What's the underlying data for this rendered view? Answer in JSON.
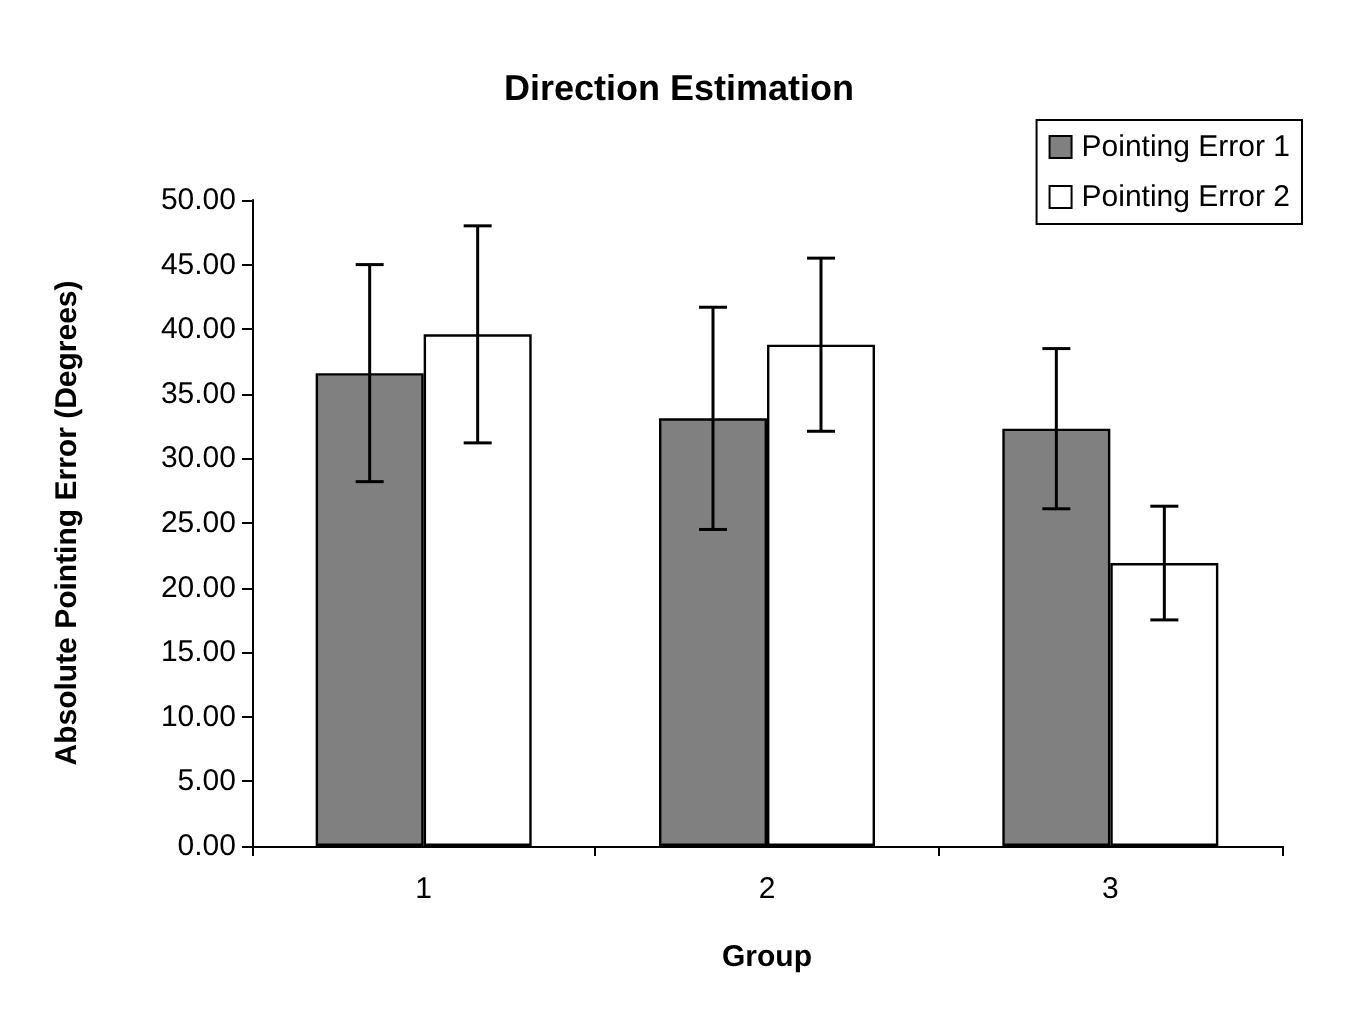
{
  "chart_data": {
    "type": "bar",
    "title": "Direction Estimation",
    "xlabel": "Group",
    "ylabel": "Absolute Pointing Error (Degrees)",
    "categories": [
      "1",
      "2",
      "3"
    ],
    "series": [
      {
        "name": "Pointing Error 1",
        "color": "#808080",
        "values": [
          36.6,
          33.1,
          32.3
        ],
        "errors": [
          8.4,
          8.6,
          6.2
        ]
      },
      {
        "name": "Pointing Error 2",
        "color": "#ffffff",
        "values": [
          39.6,
          38.8,
          21.9
        ],
        "errors": [
          8.4,
          6.7,
          4.4
        ]
      }
    ],
    "ylim": [
      0,
      50
    ],
    "yticks": [
      {
        "value": 0,
        "label": "0.00"
      },
      {
        "value": 5,
        "label": "5.00"
      },
      {
        "value": 10,
        "label": "10.00"
      },
      {
        "value": 15,
        "label": "15.00"
      },
      {
        "value": 20,
        "label": "20.00"
      },
      {
        "value": 25,
        "label": "25.00"
      },
      {
        "value": 30,
        "label": "30.00"
      },
      {
        "value": 35,
        "label": "35.00"
      },
      {
        "value": 40,
        "label": "40.00"
      },
      {
        "value": 45,
        "label": "45.00"
      },
      {
        "value": 50,
        "label": "50.00"
      }
    ],
    "grid": false,
    "legend": "top right"
  }
}
